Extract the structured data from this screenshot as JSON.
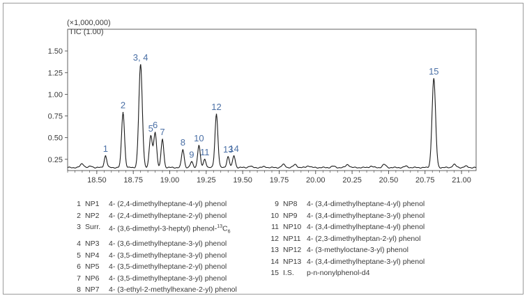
{
  "chart_data": {
    "type": "line",
    "y_multiplier_label": "(×1,000,000)",
    "series_label": "TIC (1.00)",
    "xlim": [
      18.3,
      21.1
    ],
    "ylim": [
      0.12,
      1.75
    ],
    "x_ticks": [
      "18.50",
      "18.75",
      "19.00",
      "19.25",
      "19.50",
      "19.75",
      "20.00",
      "20.25",
      "20.50",
      "20.75",
      "21.00"
    ],
    "y_ticks": [
      "0.25",
      "0.50",
      "0.75",
      "1.00",
      "1.25",
      "1.50"
    ],
    "grid": false,
    "baseline": 0.155,
    "peaks": [
      {
        "label": "1",
        "x": 18.56,
        "y": 0.29
      },
      {
        "label": "2",
        "x": 18.68,
        "y": 0.79
      },
      {
        "label": "3, 4",
        "x": 18.8,
        "y": 1.34
      },
      {
        "label": "5",
        "x": 18.87,
        "y": 0.52
      },
      {
        "label": "6",
        "x": 18.9,
        "y": 0.56
      },
      {
        "label": "7",
        "x": 18.95,
        "y": 0.48
      },
      {
        "label": "8",
        "x": 19.09,
        "y": 0.36
      },
      {
        "label": "9",
        "x": 19.15,
        "y": 0.22
      },
      {
        "label": "10",
        "x": 19.2,
        "y": 0.41
      },
      {
        "label": "11",
        "x": 19.24,
        "y": 0.25
      },
      {
        "label": "12",
        "x": 19.32,
        "y": 0.77
      },
      {
        "label": "13",
        "x": 19.4,
        "y": 0.28
      },
      {
        "label": "14",
        "x": 19.44,
        "y": 0.29
      },
      {
        "label": "15",
        "x": 20.81,
        "y": 1.18
      }
    ],
    "minor_bumps": [
      {
        "x": 18.4,
        "y": 0.2
      },
      {
        "x": 18.46,
        "y": 0.17
      },
      {
        "x": 19.55,
        "y": 0.17
      },
      {
        "x": 19.65,
        "y": 0.165
      },
      {
        "x": 19.78,
        "y": 0.19
      },
      {
        "x": 19.86,
        "y": 0.19
      },
      {
        "x": 19.95,
        "y": 0.175
      },
      {
        "x": 20.12,
        "y": 0.17
      },
      {
        "x": 20.22,
        "y": 0.19
      },
      {
        "x": 20.38,
        "y": 0.17
      },
      {
        "x": 20.47,
        "y": 0.19
      },
      {
        "x": 20.62,
        "y": 0.17
      },
      {
        "x": 20.95,
        "y": 0.19
      },
      {
        "x": 21.03,
        "y": 0.17
      }
    ]
  },
  "legend_left": [
    {
      "num": "1",
      "code": "NP1",
      "name": "4- (2,4-dimethylheptane-4-yl) phenol"
    },
    {
      "num": "2",
      "code": "NP2",
      "name": "4- (2,4-dimethylheptane-2-yl) phenol"
    },
    {
      "num": "3",
      "code": "Surr.",
      "name": "4- (3,6-dimethyl-3-heptyl) phenol-",
      "sup": "13",
      "tail": "C",
      "sub": "6"
    },
    {
      "num": "4",
      "code": "NP3",
      "name": "4- (3,6-dimethylheptane-3-yl) phenol"
    },
    {
      "num": "5",
      "code": "NP4",
      "name": "4- (3,5-dimethylheptane-3-yl) phenol"
    },
    {
      "num": "6",
      "code": "NP5",
      "name": "4- (3,5-dimethylheptane-2-yl) phenol"
    },
    {
      "num": "7",
      "code": "NP6",
      "name": "4- (3,5-dimethylheptane-3-yl) phenol"
    },
    {
      "num": "8",
      "code": "NP7",
      "name": "4- (3-ethyl-2-methylhexane-2-yl) phenol"
    }
  ],
  "legend_right": [
    {
      "num": "9",
      "code": "NP8",
      "name": "4- (3,4-dimethylheptane-4-yl) phenol"
    },
    {
      "num": "10",
      "code": "NP9",
      "name": "4- (3,4-dimethylheptane-3-yl) phenol"
    },
    {
      "num": "11",
      "code": "NP10",
      "name": "4- (3,4-dimethylheptane-4-yl) phenol"
    },
    {
      "num": "12",
      "code": "NP11",
      "name": "4- (2,3-dimethylheptan-2-yl) phenol"
    },
    {
      "num": "13",
      "code": "NP12",
      "name": "4- (3-methyloctane-3-yl) phenol"
    },
    {
      "num": "14",
      "code": "NP13",
      "name": "4- (3,4-dimethylheptane-3-yl) phenol"
    },
    {
      "num": "15",
      "code": "I.S.",
      "name": "p-n-nonylphenol-d4"
    }
  ],
  "colors": {
    "trace": "#1a1a1a",
    "label": "#4a6fa5",
    "axis": "#3a3a3a"
  }
}
